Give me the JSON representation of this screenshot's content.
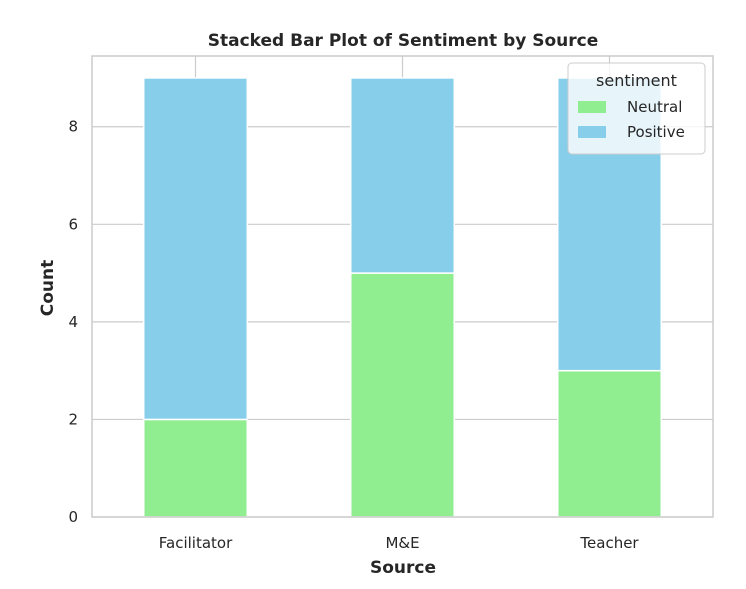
{
  "chart_data": {
    "type": "bar",
    "stacked": true,
    "title": "Stacked Bar Plot of Sentiment by Source",
    "xlabel": "Source",
    "ylabel": "Count",
    "categories": [
      "Facilitator",
      "M&E",
      "Teacher"
    ],
    "series": [
      {
        "name": "Neutral",
        "values": [
          2,
          5,
          3
        ],
        "color": "#90ee90"
      },
      {
        "name": "Positive",
        "values": [
          7,
          4,
          6
        ],
        "color": "#87ceeb"
      }
    ],
    "ylim": [
      0,
      9.45
    ],
    "yticks": [
      0,
      2,
      4,
      6,
      8
    ],
    "grid": true,
    "legend": {
      "title": "sentiment",
      "position": "top-right"
    }
  }
}
